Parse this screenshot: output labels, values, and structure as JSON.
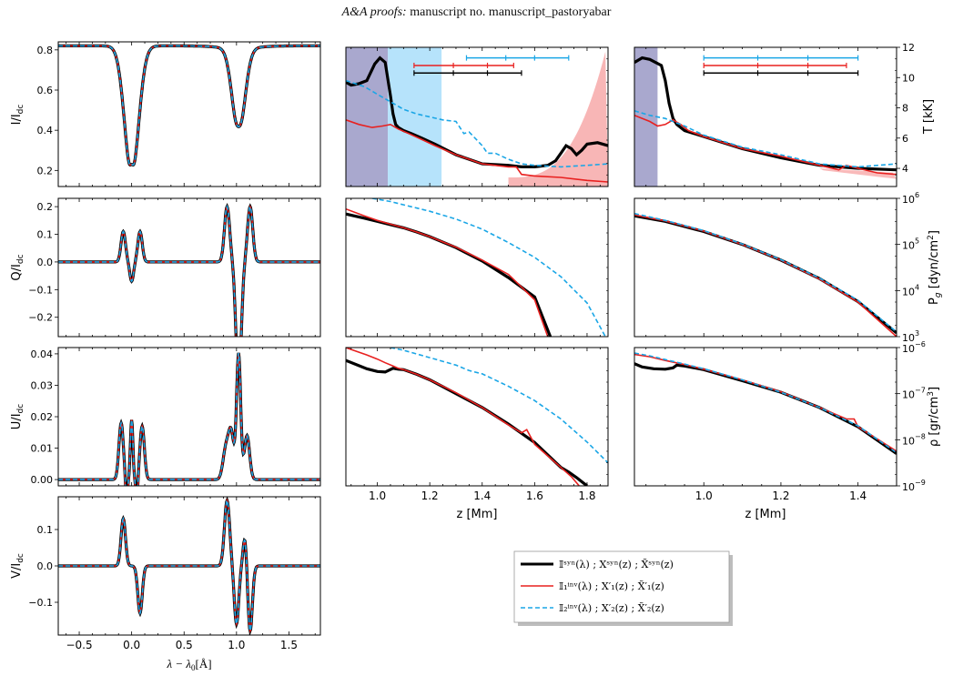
{
  "header": {
    "journal": "A&A proofs:",
    "manuscript": "manuscript no. manuscript_pastoryabar"
  },
  "colors": {
    "syn": "#000000",
    "inv1": "#e8201f",
    "inv2": "#1aa6e6"
  },
  "axis_labels": {
    "I": "I/I",
    "Q": "Q/I",
    "U": "U/I",
    "V": "V/I",
    "sub": "dc",
    "wl": "λ − λ",
    "wl_sub": "0",
    "wl_unit": "[Å]",
    "z": "z [Mm]",
    "T": "T [kK]",
    "P_a": "P",
    "P_g": "g",
    "P_b": " [dyn/cm",
    "P_sup": "2",
    "P_c": "]",
    "rho_a": "ρ [gr/cm",
    "rho_sup": "3",
    "rho_c": "]"
  },
  "legend": {
    "rows": [
      {
        "key": "syn",
        "style": "solid-thick",
        "text": "𝕀ˢʸⁿ(λ)   ;   Xˢʸⁿ(z)   ;   X̃ˢʸⁿ(z)"
      },
      {
        "key": "inv1",
        "style": "solid-thin",
        "text": "𝕀₁ⁱⁿᵛ(λ)   ;   X′₁(z)   ;   X̃′₁(z)"
      },
      {
        "key": "inv2",
        "style": "dashed",
        "text": "𝕀₂ⁱⁿᵛ(λ)   ;   X′₂(z)   ;   X̃′₂(z)"
      }
    ]
  },
  "chart_data": [
    {
      "type": "line",
      "panel": "I",
      "xlim": [
        -0.7,
        1.8
      ],
      "ylim": [
        0.12,
        0.84
      ],
      "yticks": [
        0.2,
        0.4,
        0.6,
        0.8
      ],
      "ytick_labels": [
        "0.2",
        "0.4",
        "0.6",
        "0.8"
      ]
    },
    {
      "type": "line",
      "panel": "Q",
      "xlim": [
        -0.7,
        1.8
      ],
      "ylim": [
        -0.27,
        0.23
      ],
      "yticks": [
        -0.2,
        -0.1,
        0.0,
        0.1,
        0.2
      ],
      "ytick_labels": [
        "−0.2",
        "−0.1",
        "0.0",
        "0.1",
        "0.2"
      ]
    },
    {
      "type": "line",
      "panel": "U",
      "xlim": [
        -0.7,
        1.8
      ],
      "ylim": [
        -0.002,
        0.042
      ],
      "yticks": [
        0.0,
        0.01,
        0.02,
        0.03,
        0.04
      ],
      "ytick_labels": [
        "0.00",
        "0.01",
        "0.02",
        "0.03",
        "0.04"
      ]
    },
    {
      "type": "line",
      "panel": "V",
      "xlim": [
        -0.7,
        1.8
      ],
      "ylim": [
        -0.19,
        0.19
      ],
      "yticks": [
        -0.1,
        0.0,
        0.1
      ],
      "ytick_labels": [
        "−0.1",
        "0.0",
        "0.1"
      ],
      "xticks": [
        -0.5,
        0.0,
        0.5,
        1.0,
        1.5
      ],
      "xtick_labels": [
        "−0.5",
        "0.0",
        "0.5",
        "1.0",
        "1.5"
      ]
    },
    {
      "type": "line",
      "panel": "T_mid",
      "xlim": [
        0.88,
        1.88
      ],
      "ylim": [
        2.8,
        12.0
      ],
      "shaded": [
        {
          "from": 0.88,
          "to": 1.04,
          "color": "#9a99c6"
        },
        {
          "from": 1.04,
          "to": 1.245,
          "color": "#a9defa"
        }
      ],
      "errorbars": [
        {
          "key": "inv2",
          "y": 11.3,
          "x0": 1.34,
          "x1": 1.73,
          "ticks": [
            1.34,
            1.49,
            1.6,
            1.73
          ]
        },
        {
          "key": "inv1",
          "y": 10.8,
          "x0": 1.14,
          "x1": 1.52,
          "ticks": [
            1.14,
            1.29,
            1.42,
            1.52
          ]
        },
        {
          "key": "syn",
          "y": 10.3,
          "x0": 1.14,
          "x1": 1.55,
          "ticks": [
            1.14,
            1.29,
            1.42,
            1.55
          ]
        }
      ],
      "series": [
        {
          "key": "syn",
          "x": [
            0.88,
            0.9,
            0.93,
            0.96,
            0.99,
            1.01,
            1.03,
            1.05,
            1.06,
            1.07,
            1.08,
            1.1,
            1.13,
            1.17,
            1.22,
            1.3,
            1.4,
            1.5,
            1.55,
            1.6,
            1.65,
            1.68,
            1.7,
            1.72,
            1.74,
            1.76,
            1.78,
            1.8,
            1.84,
            1.88
          ],
          "y": [
            9.7,
            9.5,
            9.6,
            9.8,
            10.9,
            11.3,
            11.0,
            8.8,
            7.6,
            6.9,
            6.7,
            6.5,
            6.3,
            6.0,
            5.6,
            4.9,
            4.3,
            4.2,
            4.1,
            4.1,
            4.2,
            4.5,
            5.0,
            5.5,
            5.3,
            4.9,
            5.2,
            5.6,
            5.7,
            5.5
          ]
        },
        {
          "key": "inv1",
          "x": [
            0.88,
            0.93,
            0.98,
            1.02,
            1.05,
            1.08,
            1.12,
            1.17,
            1.22,
            1.3,
            1.4,
            1.5,
            1.53,
            1.55,
            1.6,
            1.7,
            1.8,
            1.88
          ],
          "y": [
            7.2,
            6.9,
            6.7,
            6.8,
            6.9,
            6.6,
            6.3,
            5.9,
            5.5,
            4.9,
            4.3,
            4.1,
            4.1,
            3.6,
            3.5,
            3.4,
            3.2,
            3.1
          ]
        },
        {
          "key": "inv2",
          "x": [
            0.88,
            0.95,
            1.0,
            1.05,
            1.1,
            1.15,
            1.2,
            1.25,
            1.3,
            1.33,
            1.35,
            1.4,
            1.42,
            1.45,
            1.5,
            1.55,
            1.6,
            1.7,
            1.8,
            1.88
          ],
          "y": [
            9.8,
            9.4,
            8.9,
            8.4,
            7.9,
            7.6,
            7.4,
            7.2,
            7.1,
            6.3,
            6.4,
            5.5,
            5.0,
            5.0,
            4.6,
            4.3,
            4.2,
            4.1,
            4.2,
            4.3
          ]
        }
      ]
    },
    {
      "type": "line",
      "panel": "T_right",
      "xlim": [
        0.82,
        1.5
      ],
      "ylim": [
        2.8,
        12.0
      ],
      "yticks": [
        4,
        6,
        8,
        10,
        12
      ],
      "ytick_labels": [
        "4",
        "6",
        "8",
        "10",
        "12"
      ],
      "shaded": [
        {
          "from": 0.82,
          "to": 0.88,
          "color": "#9a99c6"
        }
      ],
      "errorbars": [
        {
          "key": "inv2",
          "y": 11.3,
          "x0": 1.0,
          "x1": 1.4,
          "ticks": [
            1.0,
            1.14,
            1.27,
            1.4
          ]
        },
        {
          "key": "inv1",
          "y": 10.8,
          "x0": 1.0,
          "x1": 1.37,
          "ticks": [
            1.0,
            1.14,
            1.27,
            1.37
          ]
        },
        {
          "key": "syn",
          "y": 10.3,
          "x0": 1.0,
          "x1": 1.4,
          "ticks": [
            1.0,
            1.14,
            1.27,
            1.4
          ]
        }
      ],
      "series": [
        {
          "key": "syn",
          "x": [
            0.82,
            0.84,
            0.86,
            0.89,
            0.9,
            0.91,
            0.92,
            0.93,
            0.95,
            1.0,
            1.1,
            1.2,
            1.3,
            1.4,
            1.5
          ],
          "y": [
            11.0,
            11.3,
            11.2,
            10.8,
            9.8,
            8.3,
            7.3,
            6.9,
            6.5,
            6.1,
            5.3,
            4.7,
            4.2,
            4.0,
            3.9
          ]
        },
        {
          "key": "inv1",
          "x": [
            0.82,
            0.86,
            0.88,
            0.9,
            0.92,
            0.94,
            0.96,
            1.0,
            1.1,
            1.2,
            1.3,
            1.35,
            1.37,
            1.4,
            1.45,
            1.5
          ],
          "y": [
            7.5,
            7.1,
            6.8,
            6.9,
            7.2,
            6.9,
            6.5,
            6.1,
            5.3,
            4.8,
            4.2,
            3.9,
            4.2,
            4.0,
            3.7,
            3.6
          ]
        },
        {
          "key": "inv2",
          "x": [
            0.82,
            0.86,
            0.9,
            0.95,
            1.0,
            1.1,
            1.2,
            1.3,
            1.4,
            1.5
          ],
          "y": [
            7.8,
            7.5,
            7.3,
            6.8,
            6.2,
            5.4,
            4.9,
            4.3,
            4.1,
            4.3
          ]
        }
      ]
    },
    {
      "type": "line",
      "panel": "P_mid",
      "xlim": [
        0.88,
        1.88
      ],
      "ylim": [
        3,
        6
      ],
      "log": true,
      "series": [
        {
          "key": "syn",
          "x": [
            0.88,
            0.95,
            1.0,
            1.05,
            1.1,
            1.15,
            1.2,
            1.3,
            1.4,
            1.5,
            1.6,
            1.66
          ],
          "y": [
            5.66,
            5.57,
            5.5,
            5.43,
            5.36,
            5.27,
            5.17,
            4.93,
            4.64,
            4.28,
            3.86,
            3.0
          ]
        },
        {
          "key": "inv1",
          "x": [
            0.88,
            0.95,
            1.0,
            1.05,
            1.1,
            1.15,
            1.2,
            1.3,
            1.4,
            1.5,
            1.6,
            1.65
          ],
          "y": [
            5.77,
            5.62,
            5.52,
            5.44,
            5.36,
            5.27,
            5.17,
            4.94,
            4.66,
            4.35,
            3.8,
            3.0
          ]
        },
        {
          "key": "inv2",
          "x": [
            0.98,
            1.05,
            1.1,
            1.2,
            1.3,
            1.4,
            1.5,
            1.6,
            1.7,
            1.8,
            1.87
          ],
          "y": [
            6.0,
            5.93,
            5.86,
            5.72,
            5.55,
            5.33,
            5.04,
            4.72,
            4.3,
            3.73,
            3.0
          ]
        }
      ]
    },
    {
      "type": "line",
      "panel": "P_right",
      "xlim": [
        0.82,
        1.5
      ],
      "ylim": [
        3,
        6
      ],
      "log": true,
      "yticks": [
        3,
        4,
        5,
        6
      ],
      "ytick_labels": [
        "10",
        "10",
        "10",
        "10"
      ],
      "ytick_exp": [
        "3",
        "4",
        "5",
        "6"
      ],
      "series": [
        {
          "key": "syn",
          "x": [
            0.82,
            0.9,
            1.0,
            1.1,
            1.2,
            1.3,
            1.4,
            1.5
          ],
          "y": [
            5.62,
            5.5,
            5.28,
            5.0,
            4.66,
            4.26,
            3.76,
            3.08
          ]
        },
        {
          "key": "inv1",
          "x": [
            0.82,
            0.9,
            1.0,
            1.1,
            1.2,
            1.3,
            1.4,
            1.5
          ],
          "y": [
            5.64,
            5.51,
            5.29,
            5.0,
            4.66,
            4.25,
            3.75,
            3.0
          ]
        },
        {
          "key": "inv2",
          "x": [
            0.82,
            0.9,
            1.0,
            1.1,
            1.2,
            1.3,
            1.4,
            1.5
          ],
          "y": [
            5.67,
            5.52,
            5.3,
            5.01,
            4.67,
            4.27,
            3.79,
            3.1
          ]
        }
      ]
    },
    {
      "type": "line",
      "panel": "rho_mid",
      "xlim": [
        0.88,
        1.88
      ],
      "ylim": [
        -9,
        -6
      ],
      "log": true,
      "xticks": [
        1.0,
        1.2,
        1.4,
        1.6,
        1.8
      ],
      "xtick_labels": [
        "1.0",
        "1.2",
        "1.4",
        "1.6",
        "1.8"
      ],
      "series": [
        {
          "key": "syn",
          "x": [
            0.88,
            0.92,
            0.96,
            1.0,
            1.03,
            1.06,
            1.08,
            1.1,
            1.15,
            1.2,
            1.3,
            1.4,
            1.5,
            1.6,
            1.7,
            1.73,
            1.76,
            1.8
          ],
          "y": [
            -6.28,
            -6.37,
            -6.46,
            -6.52,
            -6.53,
            -6.45,
            -6.47,
            -6.48,
            -6.58,
            -6.7,
            -7.0,
            -7.3,
            -7.66,
            -8.06,
            -8.6,
            -8.7,
            -8.82,
            -9.0
          ]
        },
        {
          "key": "inv1",
          "x": [
            0.88,
            0.92,
            0.96,
            1.0,
            1.03,
            1.06,
            1.08,
            1.1,
            1.15,
            1.2,
            1.3,
            1.4,
            1.5,
            1.55,
            1.57,
            1.6,
            1.7,
            1.74,
            1.77
          ],
          "y": [
            -6.0,
            -6.08,
            -6.16,
            -6.25,
            -6.33,
            -6.4,
            -6.45,
            -6.48,
            -6.58,
            -6.7,
            -6.98,
            -7.3,
            -7.68,
            -7.85,
            -7.78,
            -8.1,
            -8.6,
            -8.8,
            -9.0
          ]
        },
        {
          "key": "inv2",
          "x": [
            1.05,
            1.1,
            1.2,
            1.3,
            1.35,
            1.4,
            1.5,
            1.6,
            1.7,
            1.8,
            1.88
          ],
          "y": [
            -6.0,
            -6.06,
            -6.22,
            -6.38,
            -6.5,
            -6.57,
            -6.84,
            -7.15,
            -7.55,
            -8.05,
            -8.5
          ]
        }
      ]
    },
    {
      "type": "line",
      "panel": "rho_right",
      "xlim": [
        0.82,
        1.5
      ],
      "ylim": [
        -9,
        -6
      ],
      "log": true,
      "yticks": [
        -9,
        -8,
        -7,
        -6
      ],
      "ytick_labels": [
        "10",
        "10",
        "10",
        "10"
      ],
      "ytick_exp": [
        "−9",
        "−8",
        "−7",
        "−6"
      ],
      "xticks": [
        1.0,
        1.2,
        1.4
      ],
      "xtick_labels": [
        "1.0",
        "1.2",
        "1.4"
      ],
      "series": [
        {
          "key": "syn",
          "x": [
            0.82,
            0.84,
            0.87,
            0.9,
            0.92,
            0.93,
            0.95,
            1.0,
            1.1,
            1.2,
            1.3,
            1.4,
            1.5
          ],
          "y": [
            -6.35,
            -6.42,
            -6.46,
            -6.47,
            -6.44,
            -6.38,
            -6.4,
            -6.48,
            -6.72,
            -6.97,
            -7.3,
            -7.72,
            -8.3
          ]
        },
        {
          "key": "inv1",
          "x": [
            0.82,
            0.86,
            0.9,
            0.95,
            1.0,
            1.1,
            1.2,
            1.3,
            1.37,
            1.39,
            1.4,
            1.5
          ],
          "y": [
            -6.15,
            -6.2,
            -6.28,
            -6.37,
            -6.47,
            -6.7,
            -6.96,
            -7.3,
            -7.55,
            -7.55,
            -7.72,
            -8.25
          ]
        },
        {
          "key": "inv2",
          "x": [
            0.82,
            0.86,
            0.9,
            0.95,
            1.0,
            1.1,
            1.2,
            1.3,
            1.4,
            1.5
          ],
          "y": [
            -6.12,
            -6.18,
            -6.26,
            -6.36,
            -6.46,
            -6.7,
            -6.97,
            -7.3,
            -7.7,
            -8.28
          ]
        }
      ]
    }
  ]
}
